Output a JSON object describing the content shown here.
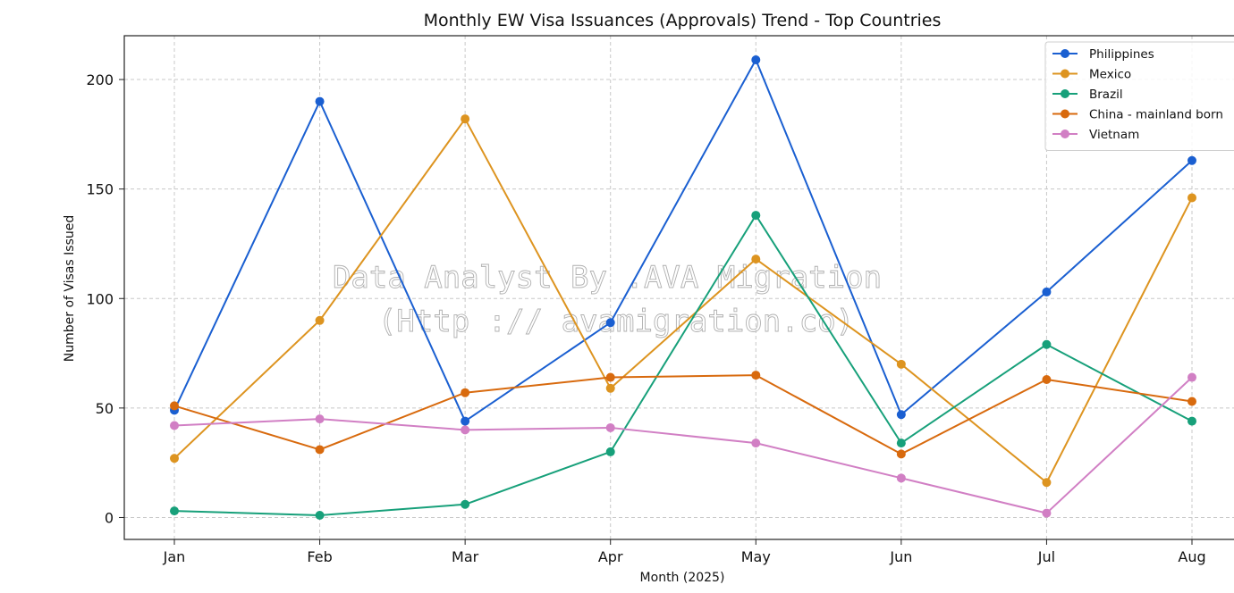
{
  "chart_data": {
    "type": "line",
    "title": "Monthly EW Visa Issuances (Approvals) Trend - Top Countries",
    "xlabel": "Month (2025)",
    "ylabel": "Number of Visas Issued",
    "categories": [
      "Jan",
      "Feb",
      "Mar",
      "Apr",
      "May",
      "Jun",
      "Jul",
      "Aug"
    ],
    "ylim": [
      -10,
      220
    ],
    "yticks": [
      0,
      50,
      100,
      150,
      200
    ],
    "grid": true,
    "legend_position": "top-right",
    "series": [
      {
        "name": "Philippines",
        "color": "#1a5fd1",
        "values": [
          49,
          190,
          44,
          89,
          209,
          47,
          103,
          163
        ]
      },
      {
        "name": "Mexico",
        "color": "#dd9420",
        "values": [
          27,
          90,
          182,
          59,
          118,
          70,
          16,
          146
        ]
      },
      {
        "name": "Brazil",
        "color": "#17a07a",
        "values": [
          3,
          1,
          6,
          30,
          138,
          34,
          79,
          44
        ]
      },
      {
        "name": "China - mainland born",
        "color": "#d86a0e",
        "values": [
          51,
          31,
          57,
          64,
          65,
          29,
          63,
          53
        ]
      },
      {
        "name": "Vietnam",
        "color": "#d17fc4",
        "values": [
          42,
          45,
          40,
          41,
          34,
          18,
          2,
          64
        ]
      }
    ]
  },
  "watermark": {
    "line1": "Data Analyst By .AVA Migration",
    "line2": "(Http :// avamigration.co)"
  }
}
